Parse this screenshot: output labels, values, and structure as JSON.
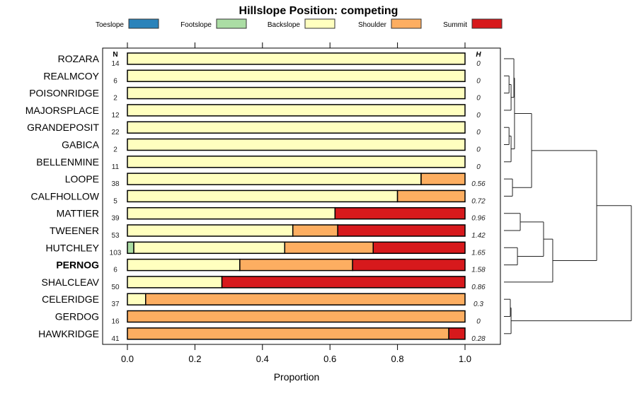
{
  "chart_data": {
    "type": "bar",
    "subtype": "stacked-horizontal-proportion-with-dendrogram",
    "title": "Hillslope Position: competing",
    "xlabel": "Proportion",
    "xlim": [
      0,
      1
    ],
    "xticks": [
      "0.0",
      "0.2",
      "0.4",
      "0.6",
      "0.8",
      "1.0"
    ],
    "n_header": "N",
    "h_header": "H",
    "legend_position": "top",
    "legend": [
      {
        "name": "Toeslope",
        "color": "#2B83BA"
      },
      {
        "name": "Footslope",
        "color": "#ABDDA4"
      },
      {
        "name": "Backslope",
        "color": "#FFFFBF"
      },
      {
        "name": "Shoulder",
        "color": "#FDAE61"
      },
      {
        "name": "Summit",
        "color": "#D7191C"
      }
    ],
    "rows": [
      {
        "label": "ROZARA",
        "n": "14",
        "h": "0",
        "values": [
          0,
          0,
          1,
          0,
          0
        ]
      },
      {
        "label": "REALMCOY",
        "n": "6",
        "h": "0",
        "values": [
          0,
          0,
          1,
          0,
          0
        ]
      },
      {
        "label": "POISONRIDGE",
        "n": "2",
        "h": "0",
        "values": [
          0,
          0,
          1,
          0,
          0
        ]
      },
      {
        "label": "MAJORSPLACE",
        "n": "12",
        "h": "0",
        "values": [
          0,
          0,
          1,
          0,
          0
        ]
      },
      {
        "label": "GRANDEPOSIT",
        "n": "22",
        "h": "0",
        "values": [
          0,
          0,
          1,
          0,
          0
        ]
      },
      {
        "label": "GABICA",
        "n": "2",
        "h": "0",
        "values": [
          0,
          0,
          1,
          0,
          0
        ]
      },
      {
        "label": "BELLENMINE",
        "n": "11",
        "h": "0",
        "values": [
          0,
          0,
          1,
          0,
          0
        ]
      },
      {
        "label": "LOOPE",
        "n": "38",
        "h": "0.56",
        "values": [
          0,
          0,
          0.87,
          0.13,
          0
        ]
      },
      {
        "label": "CALFHOLLOW",
        "n": "5",
        "h": "0.72",
        "values": [
          0,
          0,
          0.8,
          0.2,
          0
        ]
      },
      {
        "label": "MATTIER",
        "n": "39",
        "h": "0.96",
        "values": [
          0,
          0,
          0.615,
          0,
          0.385
        ]
      },
      {
        "label": "TWEENER",
        "n": "53",
        "h": "1.42",
        "values": [
          0,
          0,
          0.49,
          0.133,
          0.377
        ]
      },
      {
        "label": "HUTCHLEY",
        "n": "103",
        "h": "1.65",
        "values": [
          0,
          0.019,
          0.447,
          0.262,
          0.272
        ]
      },
      {
        "label": "PERNOG",
        "n": "6",
        "h": "1.58",
        "values": [
          0,
          0,
          0.333,
          0.334,
          0.333
        ],
        "bold": true
      },
      {
        "label": "SHALCLEAV",
        "n": "50",
        "h": "0.86",
        "values": [
          0,
          0,
          0.28,
          0,
          0.72
        ]
      },
      {
        "label": "CELERIDGE",
        "n": "37",
        "h": "0.3",
        "values": [
          0,
          0,
          0.054,
          0.946,
          0
        ]
      },
      {
        "label": "GERDOG",
        "n": "16",
        "h": "0",
        "values": [
          0,
          0,
          0,
          1,
          0
        ]
      },
      {
        "label": "HAWKRIDGE",
        "n": "41",
        "h": "0.28",
        "values": [
          0,
          0,
          0,
          0.952,
          0.048
        ]
      }
    ],
    "dendrogram": {
      "h": 1,
      "c": [
        {
          "h": 0.728,
          "c": [
            {
              "h": 0.217,
              "c": [
                {
                  "h": 0.083,
                  "c": [
                    {
                      "h": 0.078,
                      "c": [
                        0,
                        {
                          "h": 0.056,
                          "c": [
                            {
                              "h": 0.04,
                              "c": [
                                1,
                                2
                              ]
                            },
                            3
                          ]
                        }
                      ]
                    },
                    {
                      "h": 0.056,
                      "c": [
                        {
                          "h": 0.04,
                          "c": [
                            4,
                            5
                          ]
                        },
                        6
                      ]
                    }
                  ]
                },
                {
                  "h": 0.067,
                  "c": [
                    7,
                    8
                  ]
                }
              ]
            },
            {
              "h": 0.383,
              "c": [
                {
                  "h": 0.311,
                  "c": [
                    {
                      "h": 0.128,
                      "c": [
                        9,
                        10
                      ]
                    },
                    {
                      "h": 0.106,
                      "c": [
                        11,
                        12
                      ]
                    }
                  ]
                },
                13
              ]
            }
          ]
        },
        {
          "h": 0.056,
          "c": [
            {
              "h": 0.05,
              "c": [
                14,
                15
              ]
            },
            16
          ]
        }
      ]
    }
  }
}
